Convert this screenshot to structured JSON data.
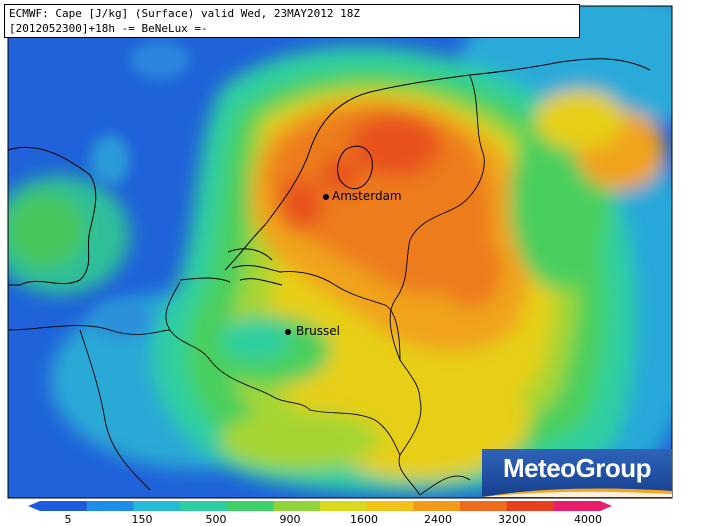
{
  "header": {
    "line1": "ECMWF: Cape [J/kg] (Surface) valid Wed, 23MAY2012 18Z",
    "line2": "[2012052300]+18h -= BeNeLux =-"
  },
  "cities": [
    {
      "name": "Amsterdam"
    },
    {
      "name": "Brussel"
    }
  ],
  "logo": {
    "text": "MeteoGroup"
  },
  "colorbar": {
    "labels": [
      "5",
      "150",
      "500",
      "900",
      "1600",
      "2400",
      "3200",
      "4000"
    ],
    "colors": [
      "#1e5adc",
      "#1f8ee6",
      "#26b9d8",
      "#2ccfa0",
      "#3fd06a",
      "#8fd43a",
      "#d8d81e",
      "#f2c21a",
      "#f39a1a",
      "#ef6b1c",
      "#e8401e",
      "#e81e6a"
    ]
  },
  "map": {
    "field": "CAPE",
    "units": "J/kg",
    "palette": {
      "deep_blue": "#1e60d8",
      "blue": "#1f86e3",
      "cyan": "#27b7d6",
      "teal": "#2fcf9e",
      "green": "#47cf5b",
      "yellowgreen": "#a8d530",
      "yellow": "#e6cf17",
      "orange": "#f0a31a",
      "darkorange": "#ec7c1b",
      "red": "#e8521e"
    }
  }
}
